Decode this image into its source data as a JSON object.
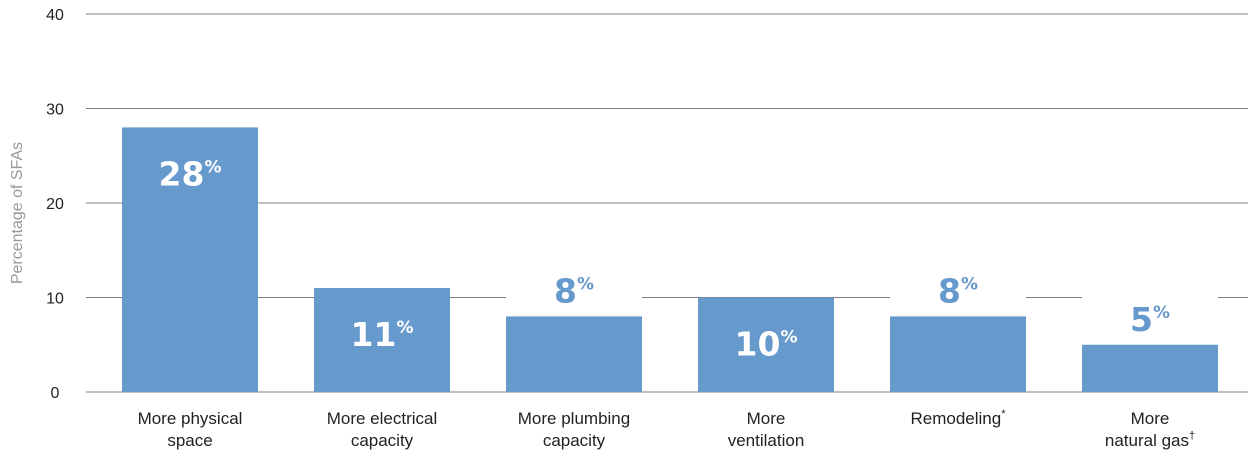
{
  "chart_data": {
    "type": "bar",
    "ylabel": "Percentage of SFAs",
    "xlabel": "",
    "ylim": [
      0,
      40
    ],
    "yticks": [
      0,
      10,
      20,
      30,
      40
    ],
    "grid": true,
    "bar_color": "#6699cc",
    "label_color_inside": "#ffffff",
    "label_color_outside": "#6699cc",
    "categories": [
      {
        "lines": [
          "More physical",
          "space"
        ],
        "sup": ""
      },
      {
        "lines": [
          "More electrical",
          "capacity"
        ],
        "sup": ""
      },
      {
        "lines": [
          "More plumbing",
          "capacity"
        ],
        "sup": ""
      },
      {
        "lines": [
          "More",
          "ventilation"
        ],
        "sup": ""
      },
      {
        "lines": [
          "Remodeling"
        ],
        "sup": "*"
      },
      {
        "lines": [
          "More",
          "natural gas"
        ],
        "sup": "†"
      }
    ],
    "values": [
      28,
      11,
      8,
      10,
      8,
      5
    ],
    "data_labels": [
      "28%",
      "11%",
      "8%",
      "10%",
      "8%",
      "5%"
    ],
    "label_position": [
      "inside",
      "inside",
      "above",
      "inside",
      "above",
      "above"
    ]
  }
}
